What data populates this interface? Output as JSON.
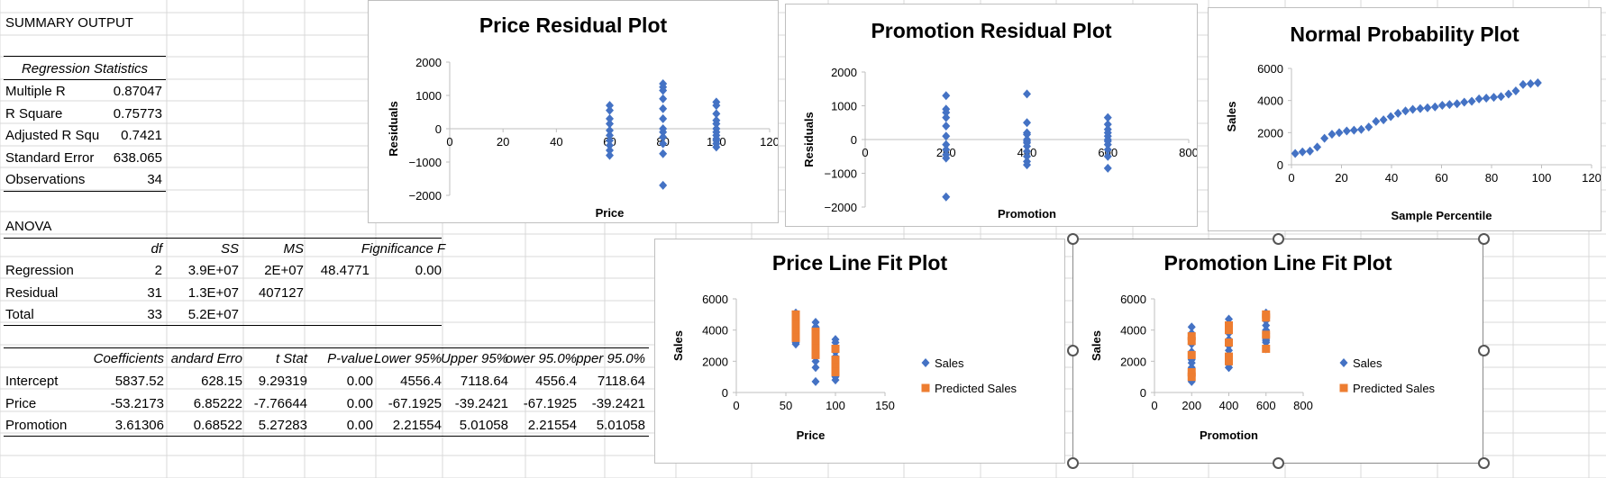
{
  "summary": {
    "title": "SUMMARY OUTPUT",
    "reg_stats_title": "Regression Statistics",
    "stats": [
      {
        "label": "Multiple R",
        "value": "0.87047"
      },
      {
        "label": "R Square",
        "value": "0.75773"
      },
      {
        "label": "Adjusted R Squ",
        "value": "0.7421"
      },
      {
        "label": "Standard Error",
        "value": "638.065"
      },
      {
        "label": "Observations",
        "value": "34"
      }
    ]
  },
  "anova": {
    "title": "ANOVA",
    "headers": [
      "df",
      "SS",
      "MS",
      "F",
      "ignificance F"
    ],
    "rows": [
      {
        "label": "Regression",
        "df": "2",
        "ss": "3.9E+07",
        "ms": "2E+07",
        "f": "48.4771",
        "sig": "0.00"
      },
      {
        "label": "Residual",
        "df": "31",
        "ss": "1.3E+07",
        "ms": "407127",
        "f": "",
        "sig": ""
      },
      {
        "label": "Total",
        "df": "33",
        "ss": "5.2E+07",
        "ms": "",
        "f": "",
        "sig": ""
      }
    ]
  },
  "coef": {
    "headers": [
      "Coefficients",
      "andard Erro",
      "t Stat",
      "P-value",
      "Lower 95%",
      "Upper 95%",
      "ower 95.0%",
      "pper 95.0%"
    ],
    "rows": [
      {
        "label": "Intercept",
        "cells": [
          "5837.52",
          "628.15",
          "9.29319",
          "0.00",
          "4556.4",
          "7118.64",
          "4556.4",
          "7118.64"
        ]
      },
      {
        "label": "Price",
        "cells": [
          "-53.2173",
          "6.85222",
          "-7.76644",
          "0.00",
          "-67.1925",
          "-39.2421",
          "-67.1925",
          "-39.2421"
        ]
      },
      {
        "label": "Promotion",
        "cells": [
          "3.61306",
          "0.68522",
          "5.27283",
          "0.00",
          "2.21554",
          "5.01058",
          "2.21554",
          "5.01058"
        ]
      }
    ]
  },
  "chart_data": [
    {
      "id": "price_residual",
      "type": "scatter",
      "title": "Price  Residual Plot",
      "xlabel": "Price",
      "ylabel": "Residuals",
      "xlim": [
        0,
        120
      ],
      "ylim": [
        -2000,
        2000
      ],
      "xticks": [
        0,
        20,
        40,
        60,
        80,
        100,
        120
      ],
      "yticks": [
        -2000,
        -1000,
        0,
        1000,
        2000
      ],
      "series": [
        {
          "color": "#4472c4",
          "marker": "diamond",
          "x": [
            60,
            60,
            60,
            60,
            60,
            60,
            60,
            60,
            60,
            60,
            80,
            80,
            80,
            80,
            80,
            80,
            80,
            80,
            80,
            80,
            80,
            80,
            100,
            100,
            100,
            100,
            100,
            100,
            100,
            100,
            100,
            100,
            100,
            100
          ],
          "y": [
            700,
            550,
            300,
            150,
            -50,
            -200,
            -350,
            -500,
            -650,
            -800,
            1350,
            1250,
            1150,
            900,
            600,
            300,
            0,
            -100,
            -250,
            -450,
            -750,
            -1700,
            800,
            700,
            450,
            250,
            150,
            0,
            -100,
            -200,
            -300,
            -350,
            -450,
            -550
          ]
        }
      ]
    },
    {
      "id": "promotion_residual",
      "type": "scatter",
      "title": "Promotion  Residual Plot",
      "xlabel": "Promotion",
      "ylabel": "Residuals",
      "xlim": [
        0,
        800
      ],
      "ylim": [
        -2000,
        2000
      ],
      "xticks": [
        0,
        200,
        400,
        600,
        800
      ],
      "yticks": [
        -2000,
        -1000,
        0,
        1000,
        2000
      ],
      "series": [
        {
          "color": "#4472c4",
          "marker": "diamond",
          "x": [
            200,
            200,
            200,
            200,
            200,
            200,
            200,
            200,
            200,
            200,
            200,
            400,
            400,
            400,
            400,
            400,
            400,
            400,
            400,
            400,
            400,
            400,
            400,
            600,
            600,
            600,
            600,
            600,
            600,
            600,
            600,
            600,
            600,
            600
          ],
          "y": [
            1300,
            900,
            800,
            650,
            400,
            100,
            -150,
            -300,
            -450,
            -550,
            -1700,
            1350,
            500,
            200,
            150,
            0,
            -50,
            -100,
            -200,
            -350,
            -500,
            -650,
            -750,
            650,
            450,
            300,
            200,
            100,
            0,
            -50,
            -150,
            -300,
            -500,
            -850
          ]
        }
      ]
    },
    {
      "id": "normal_probability",
      "type": "scatter",
      "title": "Normal Probability Plot",
      "xlabel": "Sample Percentile",
      "ylabel": "Sales",
      "xlim": [
        0,
        120
      ],
      "ylim": [
        0,
        6000
      ],
      "xticks": [
        0,
        20,
        40,
        60,
        80,
        100,
        120
      ],
      "yticks": [
        0,
        2000,
        4000,
        6000
      ],
      "series": [
        {
          "color": "#4472c4",
          "marker": "diamond",
          "x": [
            1.5,
            4.4,
            7.4,
            10.3,
            13.2,
            16.2,
            19.1,
            22.1,
            25,
            27.9,
            30.9,
            33.8,
            36.8,
            39.7,
            42.6,
            45.6,
            48.5,
            51.5,
            54.4,
            57.4,
            60.3,
            63.2,
            66.2,
            69.1,
            72.1,
            75,
            77.9,
            80.9,
            83.8,
            86.8,
            89.7,
            92.6,
            95.6,
            98.5
          ],
          "y": [
            700,
            800,
            850,
            1100,
            1650,
            1900,
            2000,
            2100,
            2150,
            2200,
            2350,
            2700,
            2800,
            3000,
            3200,
            3350,
            3450,
            3500,
            3550,
            3600,
            3700,
            3750,
            3800,
            3900,
            3950,
            4100,
            4150,
            4200,
            4250,
            4400,
            4600,
            5000,
            5050,
            5100
          ]
        }
      ]
    },
    {
      "id": "price_line_fit",
      "type": "scatter",
      "title": "Price Line Fit  Plot",
      "xlabel": "Price",
      "ylabel": "Sales",
      "xlim": [
        0,
        150
      ],
      "ylim": [
        0,
        6000
      ],
      "xticks": [
        0,
        50,
        100,
        150
      ],
      "yticks": [
        0,
        2000,
        4000,
        6000
      ],
      "legend": "right",
      "series": [
        {
          "name": "Sales",
          "color": "#4472c4",
          "marker": "diamond",
          "x": [
            60,
            60,
            60,
            60,
            60,
            60,
            60,
            60,
            60,
            60,
            80,
            80,
            80,
            80,
            80,
            80,
            80,
            80,
            80,
            80,
            80,
            80,
            100,
            100,
            100,
            100,
            100,
            100,
            100,
            100,
            100,
            100,
            100,
            100
          ],
          "y": [
            5100,
            4900,
            4600,
            4300,
            4000,
            3800,
            3600,
            3400,
            3200,
            3100,
            4500,
            4200,
            4000,
            3800,
            3500,
            3200,
            2900,
            2600,
            2300,
            2000,
            1600,
            700,
            3400,
            3200,
            2900,
            2600,
            2300,
            2100,
            1900,
            1700,
            1500,
            1200,
            1000,
            800
          ]
        },
        {
          "name": "Predicted Sales",
          "color": "#ed7d31",
          "marker": "square",
          "x": [
            60,
            60,
            60,
            60,
            60,
            80,
            80,
            80,
            80,
            80,
            100,
            100,
            100,
            100
          ],
          "y": [
            5000,
            4800,
            4300,
            3900,
            3500,
            3900,
            3700,
            3200,
            2800,
            2400,
            2800,
            2100,
            1600,
            1300
          ]
        }
      ]
    },
    {
      "id": "promotion_line_fit",
      "type": "scatter",
      "title": "Promotion Line Fit  Plot",
      "xlabel": "Promotion",
      "ylabel": "Sales",
      "xlim": [
        0,
        800
      ],
      "ylim": [
        0,
        6000
      ],
      "xticks": [
        0,
        200,
        400,
        600,
        800
      ],
      "yticks": [
        0,
        2000,
        4000,
        6000
      ],
      "legend": "right",
      "series": [
        {
          "name": "Sales",
          "color": "#4472c4",
          "marker": "diamond",
          "x": [
            200,
            200,
            200,
            200,
            200,
            200,
            200,
            200,
            200,
            200,
            200,
            400,
            400,
            400,
            400,
            400,
            400,
            400,
            400,
            400,
            400,
            400,
            400,
            600,
            600,
            600,
            600,
            600,
            600,
            600,
            600,
            600,
            600,
            600
          ],
          "y": [
            4200,
            3800,
            3500,
            3100,
            2600,
            2100,
            1900,
            1600,
            1300,
            1000,
            700,
            4700,
            4400,
            3800,
            3400,
            3000,
            2700,
            2400,
            2200,
            2000,
            1800,
            1600,
            1600,
            5100,
            4900,
            4600,
            4300,
            4000,
            3800,
            3600,
            3400,
            3300,
            3200,
            2800
          ]
        },
        {
          "name": "Predicted Sales",
          "color": "#ed7d31",
          "marker": "square",
          "x": [
            200,
            200,
            200,
            200,
            200,
            400,
            400,
            400,
            400,
            400,
            600,
            600,
            600,
            600
          ],
          "y": [
            3600,
            3300,
            2400,
            1300,
            1000,
            4300,
            4000,
            3200,
            2300,
            2000,
            5000,
            4800,
            3700,
            2800
          ]
        }
      ]
    }
  ]
}
